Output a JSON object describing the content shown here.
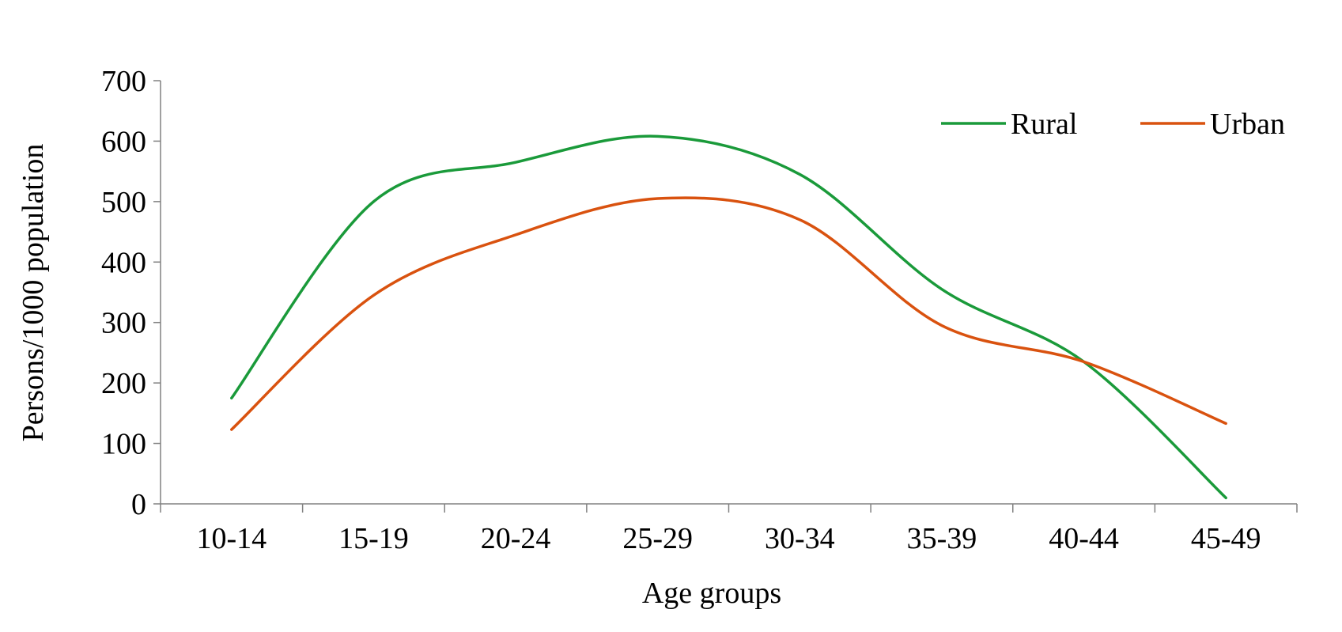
{
  "chart_data": {
    "type": "line",
    "smooth": true,
    "categories": [
      "10-14",
      "15-19",
      "20-24",
      "25-29",
      "30-34",
      "35-39",
      "40-44",
      "45-49"
    ],
    "series": [
      {
        "name": "Rural",
        "color": "#1a9a3a",
        "values": [
          175,
          500,
          565,
          608,
          545,
          355,
          235,
          10
        ]
      },
      {
        "name": "Urban",
        "color": "#d9520f",
        "values": [
          123,
          345,
          445,
          505,
          470,
          295,
          235,
          133
        ]
      }
    ],
    "xlabel": "Age groups",
    "ylabel": "Persons/1000 population",
    "ylim": [
      0,
      700
    ],
    "yticks": [
      0,
      100,
      200,
      300,
      400,
      500,
      600,
      700
    ],
    "grid": false,
    "legend_position": "top-right"
  }
}
